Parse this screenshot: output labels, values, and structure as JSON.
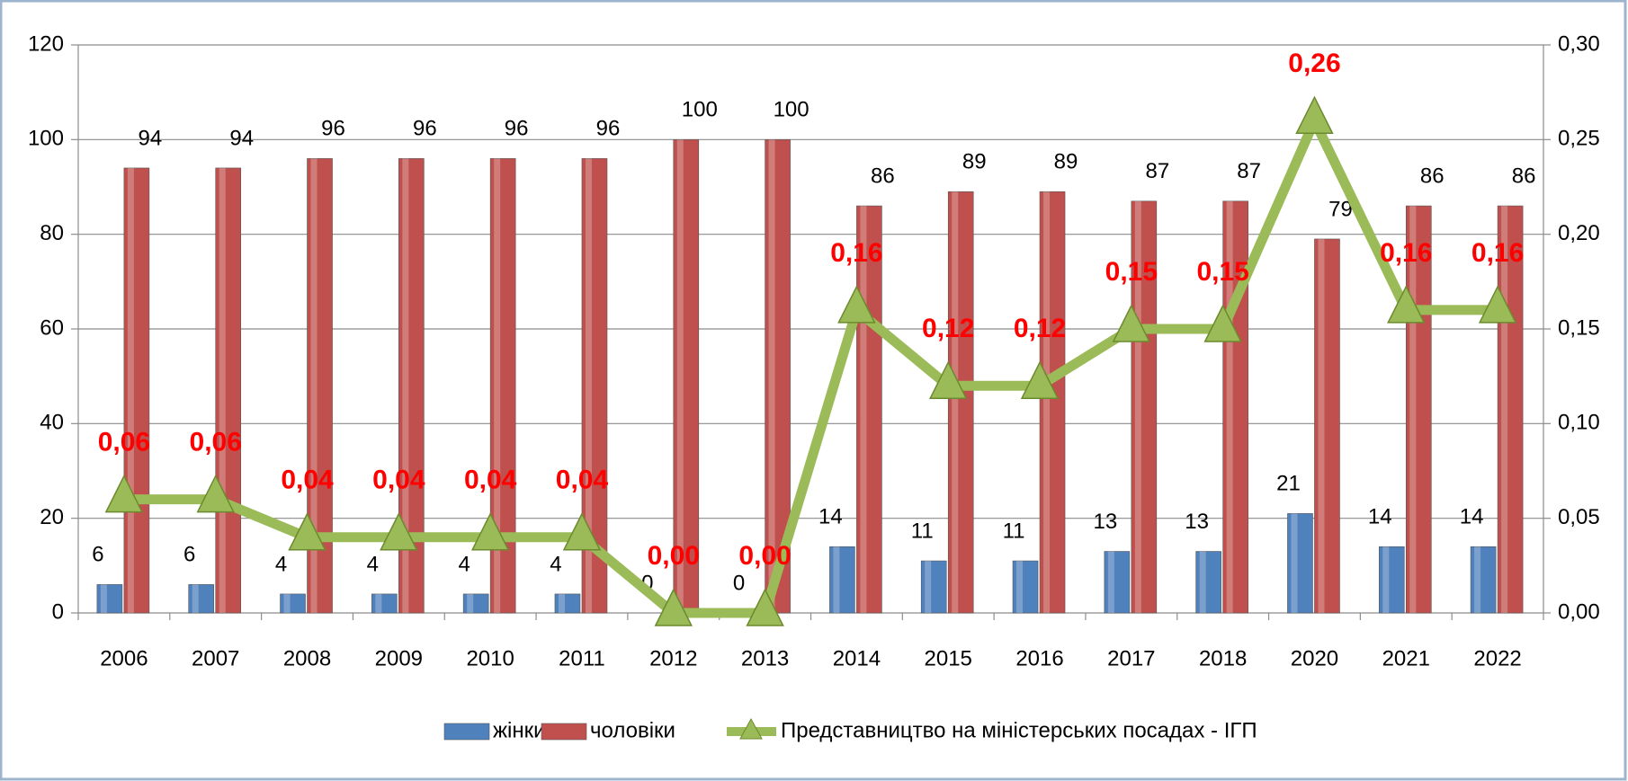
{
  "chart_data": {
    "type": "bar",
    "categories": [
      "2006",
      "2007",
      "2008",
      "2009",
      "2010",
      "2011",
      "2012",
      "2013",
      "2014",
      "2015",
      "2016",
      "2017",
      "2018",
      "2020",
      "2021",
      "2022"
    ],
    "series": [
      {
        "name": "жінки",
        "type": "bar",
        "color": "#4f81bd",
        "values": [
          6,
          6,
          4,
          4,
          4,
          4,
          0,
          0,
          14,
          11,
          11,
          13,
          13,
          21,
          14,
          14
        ]
      },
      {
        "name": "чоловіки",
        "type": "bar",
        "color": "#c0504d",
        "values": [
          94,
          94,
          96,
          96,
          96,
          96,
          100,
          100,
          86,
          89,
          89,
          87,
          87,
          79,
          86,
          86
        ]
      },
      {
        "name": "Представництво на міністерських посадах - ІГП",
        "type": "line",
        "axis": "y2",
        "color": "#9bbb59",
        "values": [
          0.06,
          0.06,
          0.04,
          0.04,
          0.04,
          0.04,
          0,
          0,
          0.16,
          0.12,
          0.12,
          0.15,
          0.15,
          0.26,
          0.16,
          0.16
        ],
        "value_labels": [
          "0,06",
          "0,06",
          "0,04",
          "0,04",
          "0,04",
          "0,04",
          "0,00",
          "0,00",
          "0,16",
          "0,12",
          "0,12",
          "0,15",
          "0,15",
          "0,26",
          "0,16",
          "0,16"
        ]
      }
    ],
    "ylim": [
      0,
      120
    ],
    "yticks": [
      0,
      20,
      40,
      60,
      80,
      100,
      120
    ],
    "y2lim": [
      0,
      0.3
    ],
    "y2ticks": [
      {
        "value": 0,
        "label": "0,00"
      },
      {
        "value": 0.05,
        "label": "0,05"
      },
      {
        "value": 0.1,
        "label": "0,10"
      },
      {
        "value": 0.15,
        "label": "0,15"
      },
      {
        "value": 0.2,
        "label": "0,20"
      },
      {
        "value": 0.25,
        "label": "0,25"
      },
      {
        "value": 0.3,
        "label": "0,30"
      }
    ],
    "grid": true,
    "legend": "bottom"
  }
}
